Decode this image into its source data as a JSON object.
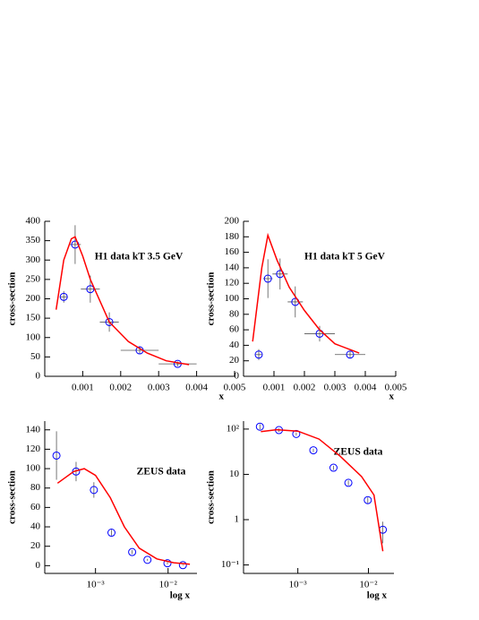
{
  "chart_data": [
    {
      "type": "scatter",
      "title": "H1 data kT 3.5 GeV",
      "xlabel": "x",
      "ylabel": "cross-section",
      "xlim": [
        0,
        0.005
      ],
      "ylim": [
        0,
        400
      ],
      "xticks": [
        0.001,
        0.002,
        0.003,
        0.004,
        0.005
      ],
      "yticks": [
        0,
        50,
        100,
        150,
        200,
        250,
        300,
        350,
        400
      ],
      "series": [
        {
          "color": "#0000ff",
          "x": [
            0.0005,
            0.0008,
            0.0012,
            0.0017,
            0.0025,
            0.0035
          ],
          "values": [
            205,
            340,
            225,
            140,
            67,
            32
          ],
          "errors": [
            15,
            50,
            35,
            25,
            10,
            6
          ],
          "xerrors": [
            0.0001,
            0.00015,
            0.00025,
            0.00025,
            0.0005,
            0.0005
          ]
        },
        {
          "type": "line",
          "color": "#ff0000",
          "x": [
            0.0003,
            0.0005,
            0.0007,
            0.0008,
            0.001,
            0.0012,
            0.0017,
            0.0022,
            0.0027,
            0.0032,
            0.0038
          ],
          "values": [
            172,
            300,
            355,
            360,
            310,
            250,
            140,
            90,
            60,
            40,
            30
          ]
        }
      ]
    },
    {
      "type": "scatter",
      "title": "H1 data kT 5 GeV",
      "xlabel": "x",
      "ylabel": "cross-section",
      "xlim": [
        0,
        0.005
      ],
      "ylim": [
        0,
        200
      ],
      "xticks": [
        0.001,
        0.002,
        0.003,
        0.004,
        0.005
      ],
      "yticks": [
        0,
        20,
        40,
        60,
        80,
        100,
        120,
        140,
        160,
        180,
        200
      ],
      "series": [
        {
          "color": "#0000ff",
          "x": [
            0.0005,
            0.0008,
            0.0012,
            0.0017,
            0.0025,
            0.0035
          ],
          "values": [
            28,
            126,
            132,
            96,
            55,
            28
          ],
          "errors": [
            7,
            25,
            20,
            20,
            10,
            5
          ],
          "xerrors": [
            0.0001,
            0.00015,
            0.00025,
            0.00025,
            0.0005,
            0.0005
          ]
        },
        {
          "type": "line",
          "color": "#ff0000",
          "x": [
            0.0003,
            0.0006,
            0.0008,
            0.0011,
            0.0015,
            0.002,
            0.0025,
            0.003,
            0.0038
          ],
          "values": [
            45,
            140,
            182,
            150,
            115,
            85,
            60,
            42,
            30
          ]
        }
      ]
    },
    {
      "type": "scatter",
      "title": "ZEUS data",
      "xlabel": "log x",
      "ylabel": "cross-section",
      "xlog": true,
      "xlim": [
        0.0002,
        0.025
      ],
      "ylim": [
        -8,
        149
      ],
      "xticks": [
        {
          "value": 0.001,
          "label": "10⁻³"
        },
        {
          "value": 0.01,
          "label": "10⁻²"
        }
      ],
      "yticks": [
        0,
        20,
        40,
        60,
        80,
        100,
        120,
        140
      ],
      "series": [
        {
          "color": "#0000ff",
          "x": [
            0.00029,
            0.00054,
            0.00095,
            0.00166,
            0.0032,
            0.0052,
            0.0098,
            0.016
          ],
          "values": [
            113.5,
            97,
            78,
            34,
            14,
            6,
            2.5,
            0.5
          ],
          "errors": [
            25,
            10,
            8,
            3,
            2,
            1,
            1,
            0.5
          ]
        },
        {
          "type": "line",
          "color": "#ff0000",
          "x": [
            0.0003,
            0.0005,
            0.0007,
            0.001,
            0.0016,
            0.0025,
            0.004,
            0.007,
            0.012,
            0.02
          ],
          "values": [
            85,
            97,
            100,
            93,
            70,
            40,
            18,
            7,
            3,
            1.5
          ]
        }
      ]
    },
    {
      "type": "scatter",
      "title": "ZEUS data",
      "xlabel": "log x",
      "ylabel": "cross-section",
      "xlog": true,
      "ylog": true,
      "xlim": [
        0.00017,
        0.023
      ],
      "ylim": [
        0.065,
        150
      ],
      "xticks": [
        {
          "value": 0.001,
          "label": "10⁻³"
        },
        {
          "value": 0.01,
          "label": "10⁻²"
        }
      ],
      "yticks": [
        {
          "value": 0.1,
          "label": "10⁻¹"
        },
        1,
        10,
        {
          "value": 100,
          "label": "10²"
        }
      ],
      "series": [
        {
          "color": "#0000ff",
          "x": [
            0.00029,
            0.00054,
            0.00095,
            0.00166,
            0.0032,
            0.0052,
            0.0098,
            0.016
          ],
          "values": [
            113,
            95,
            78,
            34,
            14,
            6.5,
            2.7,
            0.6
          ],
          "errors": [
            15,
            8,
            6,
            3,
            1.5,
            0.8,
            0.4,
            0.3
          ]
        },
        {
          "type": "line",
          "color": "#ff0000",
          "x": [
            0.0003,
            0.0005,
            0.001,
            0.002,
            0.004,
            0.008,
            0.012,
            0.016
          ],
          "values": [
            88,
            97,
            90,
            60,
            25,
            9,
            3.5,
            0.2
          ]
        }
      ]
    }
  ]
}
